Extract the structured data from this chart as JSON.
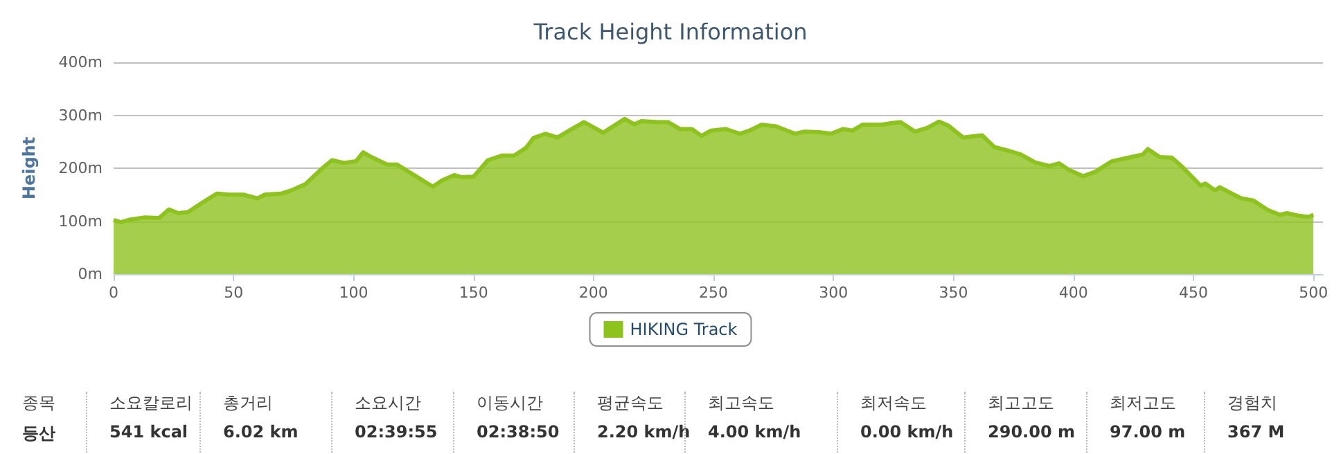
{
  "chart_data": {
    "type": "area",
    "title": "Track Height Information",
    "ylabel": "Height",
    "x": [
      0,
      3,
      7,
      13,
      19,
      23,
      27,
      31,
      37,
      43,
      48,
      54,
      60,
      63,
      70,
      74,
      80,
      87,
      91,
      96,
      101,
      104,
      107,
      114,
      118,
      122,
      133,
      137,
      142,
      145,
      150,
      156,
      162,
      167,
      172,
      175,
      180,
      185,
      191,
      196,
      204,
      213,
      217,
      220,
      227,
      231,
      236,
      241,
      245,
      249,
      255,
      261,
      265,
      270,
      276,
      284,
      288,
      294,
      299,
      304,
      308,
      312,
      320,
      324,
      328,
      334,
      339,
      344,
      348,
      354,
      358,
      362,
      367,
      372,
      378,
      384,
      390,
      394,
      398,
      404,
      409,
      416,
      422,
      429,
      431,
      436,
      441,
      445,
      453,
      455,
      459,
      461,
      466,
      470,
      475,
      481,
      486,
      489,
      494,
      498,
      500
    ],
    "series": [
      {
        "name": "HIKING Track",
        "color": "#8dc21f",
        "values": [
          102,
          98,
          103,
          107,
          106,
          122,
          115,
          117,
          135,
          152,
          150,
          150,
          143,
          150,
          152,
          158,
          170,
          200,
          215,
          210,
          213,
          230,
          222,
          207,
          207,
          196,
          165,
          177,
          187,
          183,
          184,
          215,
          224,
          224,
          239,
          257,
          265,
          258,
          274,
          287,
          267,
          293,
          283,
          289,
          287,
          287,
          274,
          274,
          261,
          271,
          274,
          265,
          271,
          282,
          279,
          265,
          269,
          268,
          265,
          274,
          271,
          282,
          282,
          285,
          287,
          269,
          276,
          288,
          280,
          258,
          260,
          262,
          240,
          234,
          226,
          211,
          204,
          209,
          197,
          185,
          193,
          213,
          219,
          226,
          236,
          221,
          220,
          204,
          167,
          171,
          158,
          164,
          152,
          143,
          139,
          121,
          112,
          115,
          110,
          108,
          112
        ]
      }
    ],
    "xlim": [
      0,
      504
    ],
    "xticks": [
      0,
      50,
      100,
      150,
      200,
      250,
      300,
      350,
      400,
      450,
      500
    ],
    "ylim": [
      0,
      400
    ],
    "yticks": [
      {
        "value": 0,
        "label": "0m"
      },
      {
        "value": 100,
        "label": "100m"
      },
      {
        "value": 200,
        "label": "200m"
      },
      {
        "value": 300,
        "label": "300m"
      },
      {
        "value": 400,
        "label": "400m"
      }
    ],
    "grid": "y",
    "legend": "bottom",
    "marker": "none",
    "annotations": [
      "종목",
      "등산",
      "소요칼로리",
      "541 kcal",
      "총거리",
      "6.02 km",
      "소요시간",
      "02:39:55",
      "이동시간",
      "02:38:50",
      "평균속도",
      "2.20 km/h",
      "최고속도",
      "4.00 km/h",
      "최저속도",
      "0.00 km/h",
      "최고고도",
      "290.00 m",
      "최저고도",
      "97.00 m",
      "경험치",
      "367 M"
    ]
  }
}
